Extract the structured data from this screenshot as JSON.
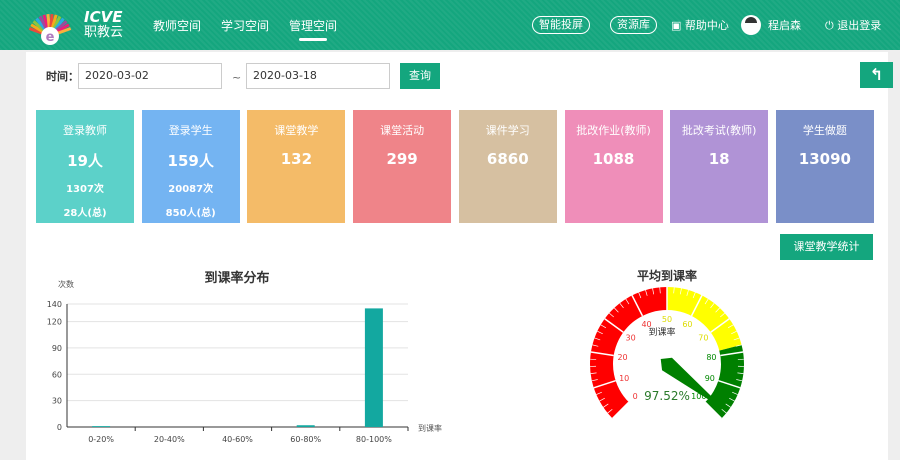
{
  "header": {
    "brand_top": "ICVE",
    "brand_bottom": "职教云",
    "nav": [
      {
        "label": "教师空间"
      },
      {
        "label": "学习空间"
      },
      {
        "label": "管理空间",
        "active": true
      }
    ],
    "smart_screen": "智能投屏",
    "resources": "资源库",
    "help": "帮助中心",
    "user": "程启森",
    "logout": "退出登录",
    "accent": "#14a67e"
  },
  "filter": {
    "label": "时间：",
    "start": "2020-03-02",
    "end": "2020-03-18",
    "sep": "~",
    "query": "查询"
  },
  "back_icon": "back-arrow-icon",
  "cards": [
    {
      "title": "登录教师",
      "value": "19人",
      "sub1": "1307次",
      "sub2": "28人(总)",
      "color": "#5cd1c9"
    },
    {
      "title": "登录学生",
      "value": "159人",
      "sub1": "20087次",
      "sub2": "850人(总)",
      "color": "#74b4f2"
    },
    {
      "title": "课堂教学",
      "value": "132",
      "color": "#f4bb68"
    },
    {
      "title": "课堂活动",
      "value": "299",
      "color": "#ef8489"
    },
    {
      "title": "课件学习",
      "value": "6860",
      "color": "#d6c0a1"
    },
    {
      "title": "批改作业(教师)",
      "value": "1088",
      "color": "#ef8eb9"
    },
    {
      "title": "批改考试(教师)",
      "value": "18",
      "color": "#b093d6"
    },
    {
      "title": "学生做题",
      "value": "13090",
      "color": "#7a8fc8"
    }
  ],
  "stats_button": "课堂教学统计",
  "chart_data": [
    {
      "type": "bar",
      "title": "到课率分布",
      "ylabel": "次数",
      "xlabel": "到课率",
      "categories": [
        "0-20%",
        "20-40%",
        "40-60%",
        "60-80%",
        "80-100%"
      ],
      "values": [
        1,
        0,
        0,
        2,
        135
      ],
      "yticks": [
        0,
        30,
        60,
        90,
        120,
        140
      ],
      "ylim": [
        0,
        140
      ],
      "grid": true,
      "color": "#13a8a0"
    },
    {
      "type": "gauge",
      "title": "平均到课率",
      "label": "到课率",
      "value": 97.52,
      "value_text": "97.52%",
      "min": 0,
      "max": 100,
      "ticks": [
        "0",
        "10",
        "20",
        "30",
        "40",
        "50",
        "60",
        "70",
        "80",
        "90",
        "100"
      ],
      "bands": [
        {
          "to": 50,
          "color": "#ff0000"
        },
        {
          "to": 78,
          "color": "#ffff00"
        },
        {
          "to": 100,
          "color": "#008000"
        }
      ]
    }
  ]
}
